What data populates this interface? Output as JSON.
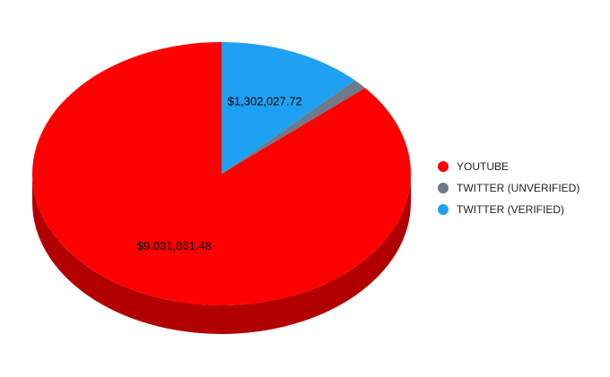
{
  "chart_data": {
    "type": "pie",
    "style": "3d",
    "legend_position": "right",
    "labels": [
      "YOUTUBE",
      "TWITTER (UNVERIFIED)",
      "TWITTER (VERIFIED)"
    ],
    "values": [
      9031861.48,
      130000,
      1302027.72
    ],
    "colors": [
      "#ff0000",
      "#6c7a89",
      "#1ea1f2"
    ],
    "side_colors": [
      "#b20000",
      "#4b5560",
      "#1570a8"
    ],
    "data_labels": [
      "$9,031,861.48",
      "",
      "$1,302,027.72"
    ]
  }
}
